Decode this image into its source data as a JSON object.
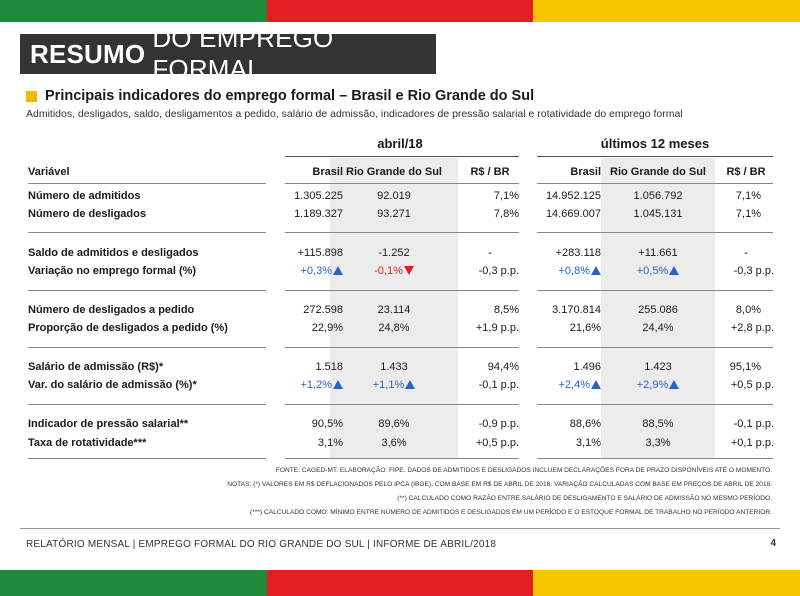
{
  "title": {
    "bold": "RESUMO",
    "rest": "DO EMPREGO FORMAL"
  },
  "subtitle": "Principais indicadores do emprego formal – Brasil e Rio Grande do Sul",
  "description": "Admitidos, desligados, saldo, desligamentos a pedido, salário de admissão, indicadores de pressão salarial e rotatividade do emprego formal",
  "groups": {
    "g1": "abril/18",
    "g2": "últimos 12 meses"
  },
  "headers": {
    "variable": "Variável",
    "brasil": "Brasil",
    "rs": "Rio Grande do Sul",
    "ratio": "R$ / BR",
    "brasil2": "Brasil",
    "rs2": "Rio Grande do Sul",
    "ratio2": "R$ / BR"
  },
  "rows": [
    {
      "label": "Número de admitidos",
      "b1": "1.305.225",
      "r1": "92.019",
      "x1": "7,1%",
      "b2": "14.952.125",
      "r2": "1.056.792",
      "x2": "7,1%"
    },
    {
      "label": "Número de desligados",
      "b1": "1.189.327",
      "r1": "93.271",
      "x1": "7,8%",
      "b2": "14.669.007",
      "r2": "1.045.131",
      "x2": "7,1%"
    },
    {
      "label": "Saldo de admitidos e desligados",
      "b1": "+115.898",
      "r1": "-1.252",
      "x1": "-",
      "b2": "+283.118",
      "r2": "+11.661",
      "x2": "-"
    },
    {
      "label": "Variação no emprego formal (%)",
      "b1": "+0,3%",
      "r1": "-0,1%",
      "x1": "-0,3 p.p.",
      "b2": "+0,8%",
      "r2": "+0,5%",
      "x2": "-0,3 p.p."
    },
    {
      "label": "Número de desligados a pedido",
      "b1": "272.598",
      "r1": "23.114",
      "x1": "8,5%",
      "b2": "3.170.814",
      "r2": "255.086",
      "x2": "8,0%"
    },
    {
      "label": "Proporção de desligados a pedido (%)",
      "b1": "22,9%",
      "r1": "24,8%",
      "x1": "+1,9 p.p.",
      "b2": "21,6%",
      "r2": "24,4%",
      "x2": "+2,8 p.p."
    },
    {
      "label": "Salário de admissão (R$)*",
      "b1": "1.518",
      "r1": "1.433",
      "x1": "94,4%",
      "b2": "1.496",
      "r2": "1.423",
      "x2": "95,1%"
    },
    {
      "label": "Var. do salário de admissão (%)*",
      "b1": "+1,2%",
      "r1": "+1,1%",
      "x1": "-0,1 p.p.",
      "b2": "+2,4%",
      "r2": "+2,9%",
      "x2": "+0,5 p.p."
    },
    {
      "label": "Indicador de pressão salarial**",
      "b1": "90,5%",
      "r1": "89,6%",
      "x1": "-0,9 p.p.",
      "b2": "88,6%",
      "r2": "88,5%",
      "x2": "-0,1 p.p."
    },
    {
      "label": "Taxa de rotatividade***",
      "b1": "3,1%",
      "r1": "3,6%",
      "x1": "+0,5 p.p.",
      "b2": "3,1%",
      "r2": "3,3%",
      "x2": "+0,1 p.p."
    }
  ],
  "notes": [
    "FONTE: CAGED-MT. ELABORAÇÃO: FIPE. DADOS DE ADMITIDOS E DESLIGADOS INCLUEM DECLARAÇÕES FORA DE PRAZO DISPONÍVEIS ATÉ O MOMENTO.",
    "NOTAS: (*) VALORES EM R$ DEFLACIONADOS PELO IPCA (IBGE), COM BASE EM R$ DE ABRIL DE 2018. VARIAÇÃO CALCULADAS COM BASE EM PREÇOS DE ABRIL DE 2018.",
    "(**) CALCULADO COMO RAZÃO ENTRE SALÁRIO DE DESLIGAMENTO E SALÁRIO DE ADMISSÃO NO MESMO PERÍODO.",
    "(***) CALCULADO COMO: MÍNIMO ENTRE NÚMERO DE ADMITIDOS E DESLIGADOS EM UM PERÍODO E O ESTOQUE FORMAL DE TRABALHO NO PERÍODO ANTERIOR."
  ],
  "footer": "RELATÓRIO MENSAL | EMPREGO FORMAL DO RIO GRANDE DO SUL | INFORME DE ABRIL/2018",
  "page_number": "4",
  "colors": {
    "green": "#1f8a3b",
    "red": "#e31d24",
    "yellow": "#f7c400",
    "accent": "#f5b800",
    "up": "#2962c7",
    "down": "#e31d24"
  }
}
